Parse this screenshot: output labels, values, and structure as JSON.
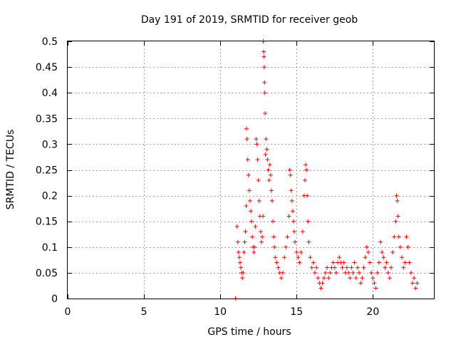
{
  "chart_data": {
    "type": "scatter",
    "title": "Day 191 of 2019, SRMTID for receiver geob",
    "xlabel": "GPS time / hours",
    "ylabel": "SRMTID / TECUs",
    "xlim": [
      0,
      24
    ],
    "ylim": [
      0,
      0.5
    ],
    "xticks": [
      0,
      5,
      10,
      15,
      20
    ],
    "xtick_labels": [
      "0",
      "5",
      "10",
      "15",
      "20"
    ],
    "yticks": [
      0,
      0.05,
      0.1,
      0.15,
      0.2,
      0.25,
      0.3,
      0.35,
      0.4,
      0.45,
      0.5
    ],
    "ytick_labels": [
      "0",
      "0.05",
      "0.1",
      "0.15",
      "0.2",
      "0.25",
      "0.3",
      "0.35",
      "0.4",
      "0.45",
      "0.5"
    ],
    "grid": true,
    "marker": "+",
    "color": "#ff0000",
    "series": [
      {
        "name": "SRMTID",
        "points": [
          [
            11.0,
            0.0
          ],
          [
            11.1,
            0.14
          ],
          [
            11.15,
            0.11
          ],
          [
            11.2,
            0.09
          ],
          [
            11.25,
            0.08
          ],
          [
            11.3,
            0.07
          ],
          [
            11.35,
            0.06
          ],
          [
            11.4,
            0.05
          ],
          [
            11.45,
            0.04
          ],
          [
            11.5,
            0.05
          ],
          [
            11.55,
            0.09
          ],
          [
            11.6,
            0.11
          ],
          [
            11.65,
            0.13
          ],
          [
            11.7,
            0.18
          ],
          [
            11.72,
            0.33
          ],
          [
            11.75,
            0.31
          ],
          [
            11.8,
            0.27
          ],
          [
            11.85,
            0.24
          ],
          [
            11.9,
            0.21
          ],
          [
            11.95,
            0.19
          ],
          [
            12.0,
            0.17
          ],
          [
            12.05,
            0.15
          ],
          [
            12.1,
            0.12
          ],
          [
            12.15,
            0.1
          ],
          [
            12.2,
            0.09
          ],
          [
            12.25,
            0.1
          ],
          [
            12.3,
            0.14
          ],
          [
            12.35,
            0.31
          ],
          [
            12.4,
            0.3
          ],
          [
            12.45,
            0.27
          ],
          [
            12.5,
            0.23
          ],
          [
            12.55,
            0.19
          ],
          [
            12.6,
            0.16
          ],
          [
            12.65,
            0.13
          ],
          [
            12.7,
            0.11
          ],
          [
            12.75,
            0.12
          ],
          [
            12.8,
            0.16
          ],
          [
            12.82,
            0.5
          ],
          [
            12.84,
            0.48
          ],
          [
            12.86,
            0.47
          ],
          [
            12.88,
            0.45
          ],
          [
            12.9,
            0.42
          ],
          [
            12.92,
            0.4
          ],
          [
            12.94,
            0.36
          ],
          [
            12.96,
            0.28
          ],
          [
            13.0,
            0.31
          ],
          [
            13.05,
            0.29
          ],
          [
            13.1,
            0.27
          ],
          [
            13.15,
            0.25
          ],
          [
            13.2,
            0.23
          ],
          [
            13.25,
            0.26
          ],
          [
            13.3,
            0.24
          ],
          [
            13.35,
            0.21
          ],
          [
            13.4,
            0.19
          ],
          [
            13.45,
            0.15
          ],
          [
            13.5,
            0.12
          ],
          [
            13.55,
            0.1
          ],
          [
            13.6,
            0.08
          ],
          [
            13.7,
            0.07
          ],
          [
            13.8,
            0.06
          ],
          [
            13.9,
            0.05
          ],
          [
            14.0,
            0.04
          ],
          [
            14.1,
            0.05
          ],
          [
            14.2,
            0.08
          ],
          [
            14.3,
            0.1
          ],
          [
            14.4,
            0.12
          ],
          [
            14.5,
            0.16
          ],
          [
            14.55,
            0.25
          ],
          [
            14.6,
            0.24
          ],
          [
            14.65,
            0.21
          ],
          [
            14.7,
            0.19
          ],
          [
            14.75,
            0.17
          ],
          [
            14.8,
            0.15
          ],
          [
            14.85,
            0.13
          ],
          [
            14.9,
            0.11
          ],
          [
            15.0,
            0.09
          ],
          [
            15.1,
            0.08
          ],
          [
            15.2,
            0.07
          ],
          [
            15.3,
            0.09
          ],
          [
            15.4,
            0.13
          ],
          [
            15.5,
            0.2
          ],
          [
            15.55,
            0.23
          ],
          [
            15.6,
            0.26
          ],
          [
            15.65,
            0.25
          ],
          [
            15.7,
            0.2
          ],
          [
            15.75,
            0.15
          ],
          [
            15.8,
            0.11
          ],
          [
            15.9,
            0.08
          ],
          [
            16.0,
            0.06
          ],
          [
            16.1,
            0.07
          ],
          [
            16.2,
            0.05
          ],
          [
            16.3,
            0.06
          ],
          [
            16.4,
            0.04
          ],
          [
            16.5,
            0.03
          ],
          [
            16.6,
            0.02
          ],
          [
            16.7,
            0.03
          ],
          [
            16.8,
            0.04
          ],
          [
            16.9,
            0.05
          ],
          [
            17.0,
            0.06
          ],
          [
            17.1,
            0.04
          ],
          [
            17.2,
            0.05
          ],
          [
            17.3,
            0.06
          ],
          [
            17.4,
            0.07
          ],
          [
            17.5,
            0.06
          ],
          [
            17.6,
            0.05
          ],
          [
            17.7,
            0.07
          ],
          [
            17.8,
            0.08
          ],
          [
            17.9,
            0.07
          ],
          [
            18.0,
            0.06
          ],
          [
            18.1,
            0.07
          ],
          [
            18.2,
            0.05
          ],
          [
            18.3,
            0.06
          ],
          [
            18.4,
            0.05
          ],
          [
            18.5,
            0.04
          ],
          [
            18.6,
            0.06
          ],
          [
            18.7,
            0.05
          ],
          [
            18.8,
            0.07
          ],
          [
            18.9,
            0.04
          ],
          [
            19.0,
            0.06
          ],
          [
            19.1,
            0.05
          ],
          [
            19.2,
            0.03
          ],
          [
            19.3,
            0.04
          ],
          [
            19.4,
            0.06
          ],
          [
            19.5,
            0.08
          ],
          [
            19.6,
            0.1
          ],
          [
            19.7,
            0.09
          ],
          [
            19.8,
            0.07
          ],
          [
            19.9,
            0.05
          ],
          [
            20.0,
            0.04
          ],
          [
            20.1,
            0.03
          ],
          [
            20.2,
            0.02
          ],
          [
            20.3,
            0.05
          ],
          [
            20.4,
            0.07
          ],
          [
            20.5,
            0.11
          ],
          [
            20.6,
            0.09
          ],
          [
            20.7,
            0.08
          ],
          [
            20.8,
            0.06
          ],
          [
            20.9,
            0.07
          ],
          [
            21.0,
            0.05
          ],
          [
            21.1,
            0.04
          ],
          [
            21.2,
            0.06
          ],
          [
            21.3,
            0.09
          ],
          [
            21.4,
            0.12
          ],
          [
            21.5,
            0.15
          ],
          [
            21.55,
            0.2
          ],
          [
            21.6,
            0.19
          ],
          [
            21.65,
            0.16
          ],
          [
            21.7,
            0.12
          ],
          [
            21.8,
            0.1
          ],
          [
            21.9,
            0.08
          ],
          [
            22.0,
            0.06
          ],
          [
            22.1,
            0.07
          ],
          [
            22.2,
            0.12
          ],
          [
            22.3,
            0.1
          ],
          [
            22.4,
            0.07
          ],
          [
            22.5,
            0.05
          ],
          [
            22.6,
            0.03
          ],
          [
            22.7,
            0.04
          ],
          [
            22.8,
            0.02
          ],
          [
            22.9,
            0.03
          ]
        ]
      }
    ]
  }
}
